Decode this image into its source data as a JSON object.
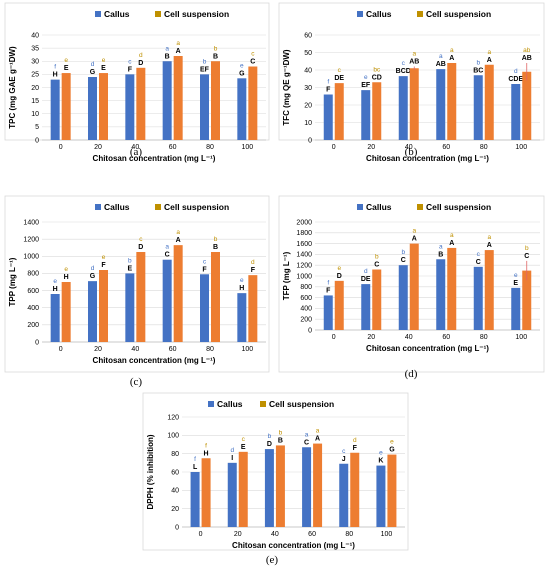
{
  "colors": {
    "callus": "#4472C4",
    "cell_suspension": "#ED7D31",
    "legend_cell_suspension": "#BF9000",
    "grid": "#d9d9d9",
    "border": "#d9d9d9",
    "axis": "#bfbfbf",
    "error": "#e06666"
  },
  "chart_data": [
    {
      "type": "bar",
      "panel": "(a)",
      "ylabel": "TPC (mg GAE g⁻¹DW)",
      "xlabel": "Chitosan concentration (mg L⁻¹)",
      "categories": [
        "0",
        "20",
        "40",
        "60",
        "80",
        "100"
      ],
      "ylim": [
        0,
        40
      ],
      "ytick_step": 5,
      "grid": true,
      "legend": "top",
      "series": [
        {
          "name": "Callus",
          "values": [
            23,
            24,
            25,
            30,
            25,
            23.5
          ],
          "errors": [
            0,
            0,
            0,
            0,
            0,
            0
          ],
          "letters_upper": [
            "H",
            "G",
            "F",
            "B",
            "EF",
            "G"
          ],
          "letters_lower": [
            "f",
            "d",
            "c",
            "a",
            "b",
            "e"
          ]
        },
        {
          "name": "Cell suspension",
          "values": [
            25.5,
            25.5,
            27.5,
            32,
            30,
            28
          ],
          "errors": [
            0,
            0,
            0,
            0,
            0,
            0
          ],
          "letters_upper": [
            "E",
            "E",
            "D",
            "A",
            "B",
            "C"
          ],
          "letters_lower": [
            "e",
            "e",
            "d",
            "a",
            "b",
            "c"
          ]
        }
      ]
    },
    {
      "type": "bar",
      "panel": "(b)",
      "ylabel": "TFC (mg QE g⁻¹DW)",
      "xlabel": "Chitosan concentration (mg L⁻¹)",
      "categories": [
        "0",
        "20",
        "40",
        "60",
        "80",
        "100"
      ],
      "ylim": [
        0,
        60
      ],
      "ytick_step": 10,
      "grid": true,
      "legend": "top",
      "series": [
        {
          "name": "Callus",
          "values": [
            26,
            28.5,
            36.5,
            40.5,
            37,
            32
          ],
          "errors": [
            0,
            0,
            0,
            0,
            0,
            0
          ],
          "letters_upper": [
            "F",
            "EF",
            "BCD",
            "AB",
            "BC",
            "CDE"
          ],
          "letters_lower": [
            "f",
            "e",
            "c",
            "a",
            "b",
            "d"
          ]
        },
        {
          "name": "Cell suspension",
          "values": [
            32.5,
            33,
            41,
            44,
            43,
            39
          ],
          "errors": [
            0,
            0,
            1,
            0,
            0,
            5
          ],
          "letters_upper": [
            "DE",
            "CD",
            "AB",
            "A",
            "A",
            "AB"
          ],
          "letters_lower": [
            "c",
            "bc",
            "a",
            "a",
            "a",
            "ab"
          ]
        }
      ]
    },
    {
      "type": "bar",
      "panel": "(c)",
      "ylabel": "TPP (mg L⁻¹)",
      "xlabel": "Chitosan concentration (mg L⁻¹)",
      "categories": [
        "0",
        "20",
        "40",
        "60",
        "80",
        "100"
      ],
      "ylim": [
        0,
        1400
      ],
      "ytick_step": 200,
      "grid": true,
      "legend": "top",
      "series": [
        {
          "name": "Callus",
          "values": [
            560,
            710,
            800,
            960,
            790,
            570
          ],
          "errors": [
            0,
            0,
            0,
            0,
            0,
            0
          ],
          "letters_upper": [
            "H",
            "G",
            "E",
            "C",
            "F",
            "H"
          ],
          "letters_lower": [
            "e",
            "d",
            "b",
            "a",
            "c",
            "e"
          ]
        },
        {
          "name": "Cell suspension",
          "values": [
            700,
            840,
            1050,
            1130,
            1050,
            780
          ],
          "errors": [
            0,
            0,
            0,
            0,
            0,
            0
          ],
          "letters_upper": [
            "H",
            "F",
            "D",
            "A",
            "B",
            "F"
          ],
          "letters_lower": [
            "e",
            "e",
            "c",
            "a",
            "b",
            "d"
          ]
        }
      ]
    },
    {
      "type": "bar",
      "panel": "(d)",
      "ylabel": "TFP (mg L⁻¹)",
      "xlabel": "Chitosan concentration (mg L⁻¹)",
      "categories": [
        "0",
        "20",
        "40",
        "60",
        "80",
        "100"
      ],
      "ylim": [
        0,
        2000
      ],
      "ytick_step": 200,
      "grid": true,
      "legend": "top",
      "series": [
        {
          "name": "Callus",
          "values": [
            640,
            850,
            1200,
            1310,
            1170,
            780
          ],
          "errors": [
            0,
            0,
            0,
            0,
            0,
            0
          ],
          "letters_upper": [
            "F",
            "DE",
            "C",
            "B",
            "C",
            "E"
          ],
          "letters_lower": [
            "f",
            "d",
            "b",
            "a",
            "c",
            "e"
          ]
        },
        {
          "name": "Cell suspension",
          "values": [
            910,
            1120,
            1600,
            1520,
            1480,
            1100
          ],
          "errors": [
            0,
            0,
            0,
            0,
            0,
            180
          ],
          "letters_upper": [
            "D",
            "C",
            "A",
            "A",
            "A",
            "C"
          ],
          "letters_lower": [
            "e",
            "b",
            "a",
            "a",
            "a",
            "b"
          ]
        }
      ]
    },
    {
      "type": "bar",
      "panel": "(e)",
      "ylabel": "DPPH (% inhibition)",
      "xlabel": "Chitosan concentration (mg L⁻¹)",
      "categories": [
        "0",
        "20",
        "40",
        "60",
        "80",
        "100"
      ],
      "ylim": [
        0,
        120
      ],
      "ytick_step": 20,
      "grid": true,
      "legend": "top",
      "series": [
        {
          "name": "Callus",
          "values": [
            60,
            70,
            85,
            87,
            69,
            67
          ],
          "errors": [
            0,
            0,
            0,
            0,
            0,
            0
          ],
          "letters_upper": [
            "L",
            "I",
            "D",
            "C",
            "J",
            "K"
          ],
          "letters_lower": [
            "f",
            "d",
            "b",
            "a",
            "c",
            "e"
          ]
        },
        {
          "name": "Cell suspension",
          "values": [
            75,
            82,
            89,
            91,
            81,
            79
          ],
          "errors": [
            0,
            0,
            0,
            0,
            0,
            0
          ],
          "letters_upper": [
            "H",
            "E",
            "B",
            "A",
            "F",
            "G"
          ],
          "letters_lower": [
            "f",
            "c",
            "b",
            "a",
            "d",
            "e"
          ]
        }
      ]
    }
  ]
}
